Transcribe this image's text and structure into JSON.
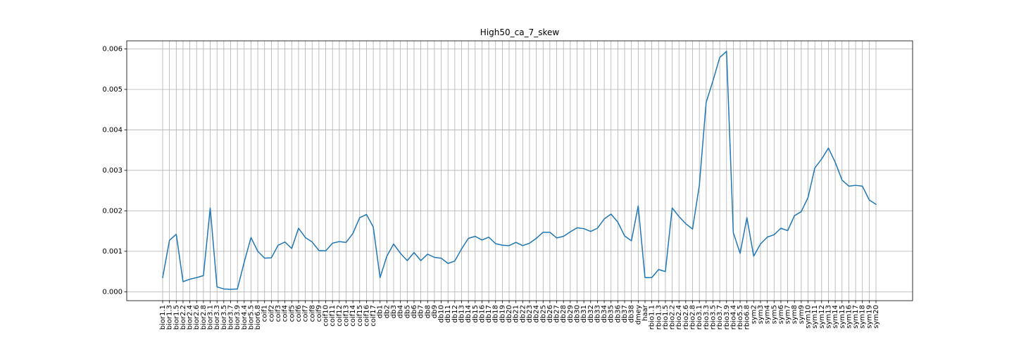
{
  "chart_data": {
    "type": "line",
    "title": "High50_ca_7_skew",
    "xlabel": "",
    "ylabel": "",
    "ylim": [
      -0.00022,
      0.0062
    ],
    "yticks": [
      0.0,
      0.001,
      0.002,
      0.003,
      0.004,
      0.005,
      0.006
    ],
    "ytick_labels": [
      "0.000",
      "0.001",
      "0.002",
      "0.003",
      "0.004",
      "0.005",
      "0.006"
    ],
    "grid": true,
    "line_color": "#1f77b4",
    "categories": [
      "bior1.1",
      "bior1.3",
      "bior1.5",
      "bior2.2",
      "bior2.4",
      "bior2.6",
      "bior2.8",
      "bior3.1",
      "bior3.3",
      "bior3.5",
      "bior3.7",
      "bior3.9",
      "bior4.4",
      "bior5.5",
      "bior6.8",
      "coif1",
      "coif2",
      "coif3",
      "coif4",
      "coif5",
      "coif6",
      "coif7",
      "coif8",
      "coif9",
      "coif10",
      "coif11",
      "coif12",
      "coif13",
      "coif14",
      "coif15",
      "coif16",
      "coif17",
      "db1",
      "db2",
      "db3",
      "db4",
      "db5",
      "db6",
      "db7",
      "db8",
      "db9",
      "db10",
      "db11",
      "db12",
      "db13",
      "db14",
      "db15",
      "db16",
      "db17",
      "db18",
      "db19",
      "db20",
      "db21",
      "db22",
      "db23",
      "db24",
      "db25",
      "db26",
      "db27",
      "db28",
      "db29",
      "db30",
      "db31",
      "db32",
      "db33",
      "db34",
      "db35",
      "db36",
      "db37",
      "db38",
      "dmey",
      "haar",
      "rbio1.1",
      "rbio1.3",
      "rbio1.5",
      "rbio2.2",
      "rbio2.4",
      "rbio2.6",
      "rbio2.8",
      "rbio3.1",
      "rbio3.3",
      "rbio3.5",
      "rbio3.7",
      "rbio3.9",
      "rbio4.4",
      "rbio5.5",
      "rbio6.8",
      "sym2",
      "sym3",
      "sym4",
      "sym5",
      "sym6",
      "sym7",
      "sym8",
      "sym9",
      "sym10",
      "sym11",
      "sym12",
      "sym13",
      "sym14",
      "sym15",
      "sym16",
      "sym17",
      "sym18",
      "sym19",
      "sym20"
    ],
    "values": [
      0.00035,
      0.00127,
      0.00142,
      0.00025,
      0.00031,
      0.00035,
      0.0004,
      0.00207,
      0.00012,
      7e-05,
      6e-05,
      7e-05,
      0.00073,
      0.00134,
      0.001,
      0.00083,
      0.00084,
      0.00115,
      0.00123,
      0.00107,
      0.00157,
      0.00134,
      0.00123,
      0.00102,
      0.00101,
      0.0012,
      0.00124,
      0.00122,
      0.00144,
      0.00183,
      0.00191,
      0.0016,
      0.00035,
      0.00088,
      0.00118,
      0.00095,
      0.00077,
      0.00097,
      0.00077,
      0.00093,
      0.00085,
      0.00083,
      0.0007,
      0.00076,
      0.00106,
      0.00132,
      0.00137,
      0.00128,
      0.00135,
      0.00119,
      0.00115,
      0.00114,
      0.00122,
      0.00114,
      0.0012,
      0.00132,
      0.00147,
      0.00147,
      0.00133,
      0.00137,
      0.00148,
      0.00158,
      0.00156,
      0.00149,
      0.00157,
      0.0018,
      0.00192,
      0.00172,
      0.00138,
      0.00126,
      0.00212,
      0.00035,
      0.00035,
      0.00055,
      0.0005,
      0.00207,
      0.00186,
      0.00168,
      0.00155,
      0.00263,
      0.00468,
      0.00521,
      0.00579,
      0.00594,
      0.00146,
      0.00095,
      0.00183,
      0.00088,
      0.00118,
      0.00135,
      0.00141,
      0.00157,
      0.00151,
      0.00188,
      0.00198,
      0.00233,
      0.00306,
      0.00328,
      0.00355,
      0.0032,
      0.00276,
      0.00261,
      0.00263,
      0.00261,
      0.00227,
      0.00216
    ]
  }
}
